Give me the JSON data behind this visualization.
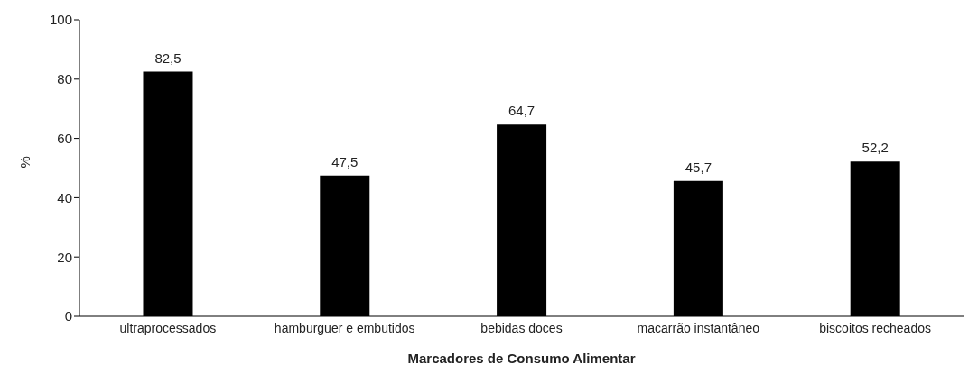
{
  "chart_data": {
    "type": "bar",
    "xlabel": "Marcadores de Consumo Alimentar",
    "ylabel": "%",
    "categories": [
      "ultraprocessados",
      "hamburguer e embutidos",
      "bebidas doces",
      "macarrão instantâneo",
      "biscoitos recheados"
    ],
    "values": [
      82.5,
      47.5,
      64.7,
      45.7,
      52.2
    ],
    "value_labels": [
      "82,5",
      "47,5",
      "64,7",
      "45,7",
      "52,2"
    ],
    "color": "#000000",
    "ylim": [
      0,
      100
    ],
    "yticks": [
      0,
      20,
      40,
      60,
      80,
      100
    ],
    "grid": false,
    "legend": false
  }
}
